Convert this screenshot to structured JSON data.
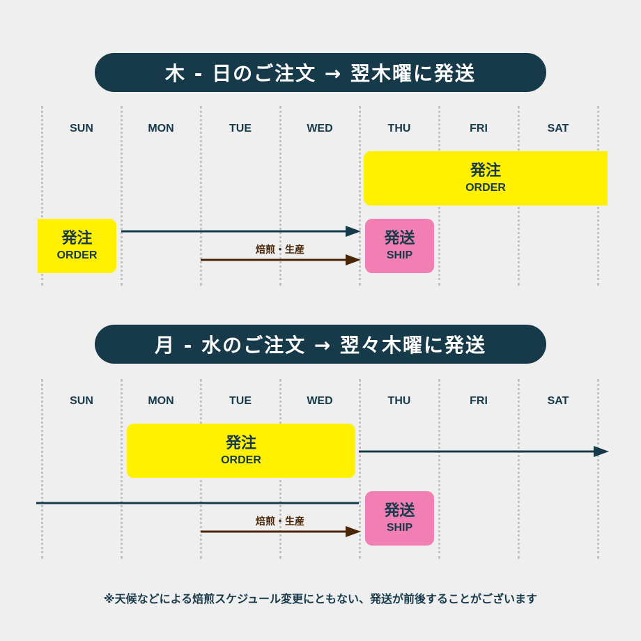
{
  "sections": [
    {
      "title": "木 - 日のご注文 → 翌木曜に発送",
      "days": [
        "SUN",
        "MON",
        "TUE",
        "WED",
        "THU",
        "FRI",
        "SAT"
      ],
      "order_main": {
        "jp": "発注",
        "en": "ORDER"
      },
      "order_side": {
        "jp": "発注",
        "en": "ORDER"
      },
      "ship": {
        "jp": "発送",
        "en": "SHIP"
      },
      "process_label": "焙煎・生産"
    },
    {
      "title": "月 - 水のご注文 → 翌々木曜に発送",
      "days": [
        "SUN",
        "MON",
        "TUE",
        "WED",
        "THU",
        "FRI",
        "SAT"
      ],
      "order_main": {
        "jp": "発注",
        "en": "ORDER"
      },
      "ship": {
        "jp": "発送",
        "en": "SHIP"
      },
      "process_label": "焙煎・生産"
    }
  ],
  "footnote": "※天候などによる焙煎スケジュール変更にともない、発送が前後することがございます",
  "colors": {
    "navy": "#173a4a",
    "order_yellow": "#fff100",
    "ship_pink": "#f27fb4",
    "process_brown": "#4a2608"
  }
}
